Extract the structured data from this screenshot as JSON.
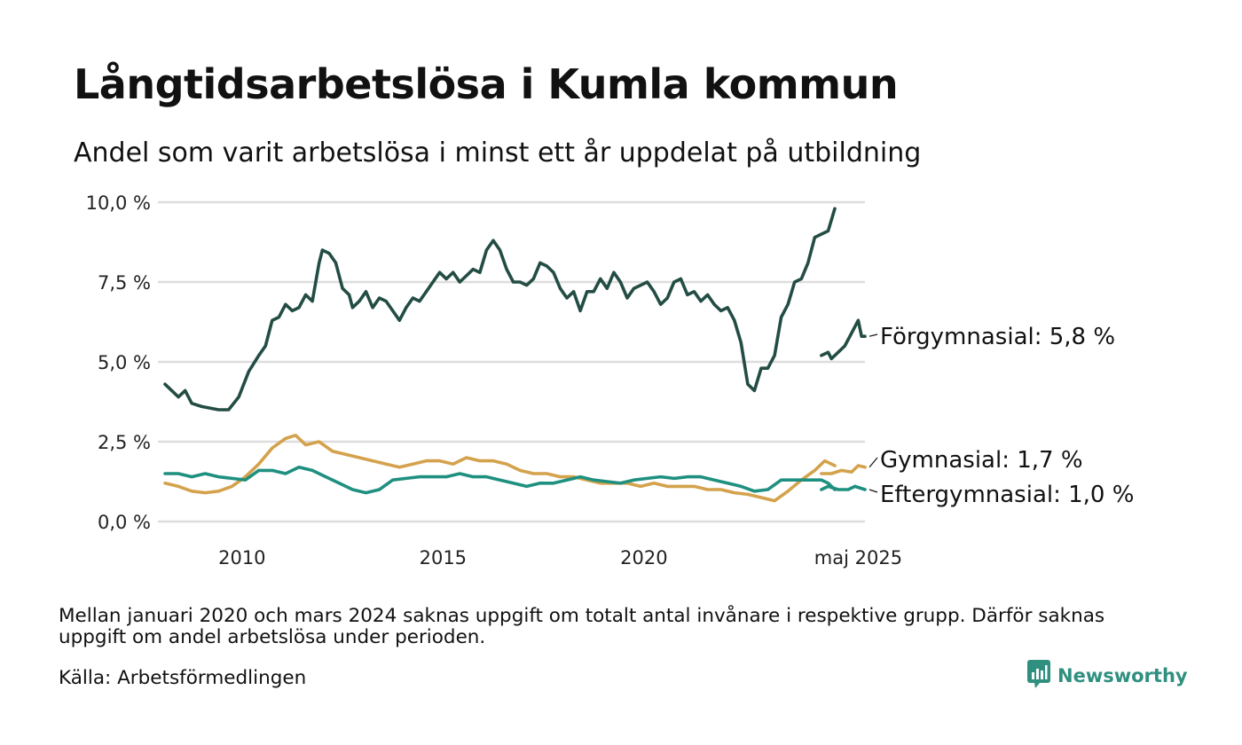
{
  "title": "Långtidsarbetslösa i Kumla kommun",
  "subtitle": "Andel som varit arbetslösa i minst ett år uppdelat på utbildning",
  "note": "Mellan januari 2020 och mars 2024 saknas uppgift om totalt antal invånare i respektive grupp. Därför saknas uppgift om andel arbetslösa under perioden.",
  "source": "Källa: Arbetsförmedlingen",
  "brand": {
    "name": "Newsworthy",
    "icon": "newsworthy-logo-icon"
  },
  "colors": {
    "forgymnasial": "#234d44",
    "gymnasial": "#d4a24c",
    "eftergymnasial": "#1f9080",
    "grid": "#dddddd"
  },
  "chart_data": {
    "type": "line",
    "title": "Långtidsarbetslösa i Kumla kommun",
    "subtitle": "Andel som varit arbetslösa i minst ett år uppdelat på utbildning",
    "xlabel": "",
    "ylabel": "",
    "ylim": [
      0,
      10
    ],
    "yticks": [
      0,
      2.5,
      5,
      7.5,
      10
    ],
    "ytick_labels": [
      "0,0 %",
      "2,5 %",
      "5,0 %",
      "7,5 %",
      "10,0 %"
    ],
    "xticks": [
      {
        "x": "2010-01",
        "label": "2010"
      },
      {
        "x": "2015-01",
        "label": "2015"
      },
      {
        "x": "2020-01",
        "label": "2020"
      },
      {
        "x": "2025-05",
        "label": "maj 2025"
      }
    ],
    "grid": true,
    "legend": "direct labels at right end of lines",
    "series": [
      {
        "name": "Förgymnasial",
        "end_label": "Förgymnasial: 5,8 %",
        "color": "#234d44",
        "segments": [
          [
            [
              "2008-02",
              4.3
            ],
            [
              "2008-06",
              3.9
            ],
            [
              "2008-08",
              4.1
            ],
            [
              "2008-10",
              3.7
            ],
            [
              "2009-01",
              3.6
            ],
            [
              "2009-06",
              3.5
            ],
            [
              "2009-09",
              3.5
            ],
            [
              "2009-12",
              3.9
            ],
            [
              "2010-03",
              4.7
            ],
            [
              "2010-06",
              5.2
            ],
            [
              "2010-08",
              5.5
            ],
            [
              "2010-10",
              6.3
            ],
            [
              "2010-12",
              6.4
            ],
            [
              "2011-02",
              6.8
            ],
            [
              "2011-04",
              6.6
            ],
            [
              "2011-06",
              6.7
            ],
            [
              "2011-08",
              7.1
            ],
            [
              "2011-10",
              6.9
            ],
            [
              "2011-12",
              8.1
            ],
            [
              "2012-01",
              8.5
            ],
            [
              "2012-03",
              8.4
            ],
            [
              "2012-05",
              8.1
            ],
            [
              "2012-07",
              7.3
            ],
            [
              "2012-09",
              7.1
            ],
            [
              "2012-10",
              6.7
            ],
            [
              "2012-12",
              6.9
            ],
            [
              "2013-02",
              7.2
            ],
            [
              "2013-04",
              6.7
            ],
            [
              "2013-06",
              7.0
            ],
            [
              "2013-08",
              6.9
            ],
            [
              "2013-10",
              6.6
            ],
            [
              "2013-12",
              6.3
            ],
            [
              "2014-02",
              6.7
            ],
            [
              "2014-04",
              7.0
            ],
            [
              "2014-06",
              6.9
            ],
            [
              "2014-08",
              7.2
            ],
            [
              "2014-10",
              7.5
            ],
            [
              "2014-12",
              7.8
            ],
            [
              "2015-02",
              7.6
            ],
            [
              "2015-04",
              7.8
            ],
            [
              "2015-06",
              7.5
            ],
            [
              "2015-08",
              7.7
            ],
            [
              "2015-10",
              7.9
            ],
            [
              "2015-12",
              7.8
            ],
            [
              "2016-02",
              8.5
            ],
            [
              "2016-04",
              8.8
            ],
            [
              "2016-06",
              8.5
            ],
            [
              "2016-08",
              7.9
            ],
            [
              "2016-10",
              7.5
            ],
            [
              "2016-12",
              7.5
            ],
            [
              "2017-02",
              7.4
            ],
            [
              "2017-04",
              7.6
            ],
            [
              "2017-06",
              8.1
            ],
            [
              "2017-08",
              8.0
            ],
            [
              "2017-10",
              7.8
            ],
            [
              "2017-12",
              7.3
            ],
            [
              "2018-02",
              7.0
            ],
            [
              "2018-04",
              7.2
            ],
            [
              "2018-06",
              6.6
            ],
            [
              "2018-08",
              7.2
            ],
            [
              "2018-10",
              7.2
            ],
            [
              "2018-12",
              7.6
            ],
            [
              "2019-02",
              7.3
            ],
            [
              "2019-04",
              7.8
            ],
            [
              "2019-06",
              7.5
            ],
            [
              "2019-08",
              7.0
            ],
            [
              "2019-10",
              7.3
            ],
            [
              "2019-12",
              7.4
            ],
            [
              "2020-02",
              7.5
            ],
            [
              "2020-04",
              7.2
            ],
            [
              "2020-06",
              6.8
            ],
            [
              "2020-08",
              7.0
            ],
            [
              "2020-10",
              7.5
            ],
            [
              "2020-12",
              7.6
            ],
            [
              "2021-02",
              7.1
            ],
            [
              "2021-04",
              7.2
            ],
            [
              "2021-06",
              6.9
            ],
            [
              "2021-08",
              7.1
            ],
            [
              "2021-10",
              6.8
            ],
            [
              "2021-12",
              6.6
            ],
            [
              "2022-02",
              6.7
            ],
            [
              "2022-04",
              6.3
            ],
            [
              "2022-06",
              5.6
            ],
            [
              "2022-08",
              4.3
            ],
            [
              "2022-10",
              4.1
            ],
            [
              "2022-12",
              4.8
            ],
            [
              "2023-02",
              4.8
            ],
            [
              "2023-04",
              5.2
            ],
            [
              "2023-06",
              6.4
            ],
            [
              "2023-08",
              6.8
            ],
            [
              "2023-10",
              7.5
            ],
            [
              "2023-12",
              7.6
            ],
            [
              "2024-02",
              8.1
            ],
            [
              "2024-04",
              8.9
            ],
            [
              "2024-06",
              9.0
            ],
            [
              "2024-08",
              9.1
            ],
            [
              "2024-10",
              9.8
            ]
          ],
          [
            [
              "2024-06",
              5.2
            ],
            [
              "2024-08",
              5.3
            ],
            [
              "2024-09",
              5.1
            ],
            [
              "2024-11",
              5.3
            ],
            [
              "2025-01",
              5.5
            ],
            [
              "2025-03",
              5.9
            ],
            [
              "2025-05",
              6.3
            ],
            [
              "2025-06",
              5.8
            ],
            [
              "2025-07",
              5.8
            ]
          ]
        ]
      },
      {
        "name": "Gymnasial",
        "end_label": "Gymnasial: 1,7 %",
        "color": "#d4a24c",
        "segments": [
          [
            [
              "2008-02",
              1.2
            ],
            [
              "2008-06",
              1.1
            ],
            [
              "2008-10",
              0.95
            ],
            [
              "2009-02",
              0.9
            ],
            [
              "2009-06",
              0.95
            ],
            [
              "2009-10",
              1.1
            ],
            [
              "2010-02",
              1.4
            ],
            [
              "2010-06",
              1.8
            ],
            [
              "2010-10",
              2.3
            ],
            [
              "2011-02",
              2.6
            ],
            [
              "2011-05",
              2.7
            ],
            [
              "2011-08",
              2.4
            ],
            [
              "2011-12",
              2.5
            ],
            [
              "2012-04",
              2.2
            ],
            [
              "2012-08",
              2.1
            ],
            [
              "2012-12",
              2.0
            ],
            [
              "2013-04",
              1.9
            ],
            [
              "2013-08",
              1.8
            ],
            [
              "2013-12",
              1.7
            ],
            [
              "2014-04",
              1.8
            ],
            [
              "2014-08",
              1.9
            ],
            [
              "2014-12",
              1.9
            ],
            [
              "2015-04",
              1.8
            ],
            [
              "2015-08",
              2.0
            ],
            [
              "2015-12",
              1.9
            ],
            [
              "2016-04",
              1.9
            ],
            [
              "2016-08",
              1.8
            ],
            [
              "2016-12",
              1.6
            ],
            [
              "2017-04",
              1.5
            ],
            [
              "2017-08",
              1.5
            ],
            [
              "2017-12",
              1.4
            ],
            [
              "2018-04",
              1.4
            ],
            [
              "2018-08",
              1.3
            ],
            [
              "2018-12",
              1.2
            ],
            [
              "2019-04",
              1.2
            ],
            [
              "2019-08",
              1.2
            ],
            [
              "2019-12",
              1.1
            ],
            [
              "2020-04",
              1.2
            ],
            [
              "2020-08",
              1.1
            ],
            [
              "2020-12",
              1.1
            ],
            [
              "2021-04",
              1.1
            ],
            [
              "2021-08",
              1.0
            ],
            [
              "2021-12",
              1.0
            ],
            [
              "2022-04",
              0.9
            ],
            [
              "2022-08",
              0.85
            ],
            [
              "2022-12",
              0.75
            ],
            [
              "2023-04",
              0.65
            ],
            [
              "2023-08",
              0.95
            ],
            [
              "2023-12",
              1.3
            ],
            [
              "2024-04",
              1.6
            ],
            [
              "2024-07",
              1.9
            ],
            [
              "2024-10",
              1.75
            ]
          ],
          [
            [
              "2024-06",
              1.5
            ],
            [
              "2024-09",
              1.5
            ],
            [
              "2024-12",
              1.6
            ],
            [
              "2025-03",
              1.55
            ],
            [
              "2025-05",
              1.75
            ],
            [
              "2025-07",
              1.7
            ]
          ]
        ]
      },
      {
        "name": "Eftergymnasial",
        "end_label": "Eftergymnasial: 1,0 %",
        "color": "#1f9080",
        "segments": [
          [
            [
              "2008-02",
              1.5
            ],
            [
              "2008-06",
              1.5
            ],
            [
              "2008-10",
              1.4
            ],
            [
              "2009-02",
              1.5
            ],
            [
              "2009-06",
              1.4
            ],
            [
              "2009-10",
              1.35
            ],
            [
              "2010-02",
              1.3
            ],
            [
              "2010-06",
              1.6
            ],
            [
              "2010-10",
              1.6
            ],
            [
              "2011-02",
              1.5
            ],
            [
              "2011-06",
              1.7
            ],
            [
              "2011-10",
              1.6
            ],
            [
              "2012-02",
              1.4
            ],
            [
              "2012-06",
              1.2
            ],
            [
              "2012-10",
              1.0
            ],
            [
              "2013-02",
              0.9
            ],
            [
              "2013-06",
              1.0
            ],
            [
              "2013-10",
              1.3
            ],
            [
              "2014-02",
              1.35
            ],
            [
              "2014-06",
              1.4
            ],
            [
              "2014-10",
              1.4
            ],
            [
              "2015-02",
              1.4
            ],
            [
              "2015-06",
              1.5
            ],
            [
              "2015-10",
              1.4
            ],
            [
              "2016-02",
              1.4
            ],
            [
              "2016-06",
              1.3
            ],
            [
              "2016-10",
              1.2
            ],
            [
              "2017-02",
              1.1
            ],
            [
              "2017-06",
              1.2
            ],
            [
              "2017-10",
              1.2
            ],
            [
              "2018-02",
              1.3
            ],
            [
              "2018-06",
              1.4
            ],
            [
              "2018-10",
              1.3
            ],
            [
              "2019-02",
              1.25
            ],
            [
              "2019-06",
              1.2
            ],
            [
              "2019-10",
              1.3
            ],
            [
              "2020-02",
              1.35
            ],
            [
              "2020-06",
              1.4
            ],
            [
              "2020-10",
              1.35
            ],
            [
              "2021-02",
              1.4
            ],
            [
              "2021-06",
              1.4
            ],
            [
              "2021-10",
              1.3
            ],
            [
              "2022-02",
              1.2
            ],
            [
              "2022-06",
              1.1
            ],
            [
              "2022-10",
              0.95
            ],
            [
              "2023-02",
              1.0
            ],
            [
              "2023-06",
              1.3
            ],
            [
              "2023-10",
              1.3
            ],
            [
              "2024-02",
              1.3
            ],
            [
              "2024-06",
              1.3
            ],
            [
              "2024-08",
              1.2
            ],
            [
              "2024-10",
              1.0
            ]
          ],
          [
            [
              "2024-06",
              1.0
            ],
            [
              "2024-08",
              1.1
            ],
            [
              "2024-11",
              1.0
            ],
            [
              "2025-02",
              1.0
            ],
            [
              "2025-04",
              1.1
            ],
            [
              "2025-07",
              1.0
            ]
          ]
        ]
      }
    ]
  }
}
